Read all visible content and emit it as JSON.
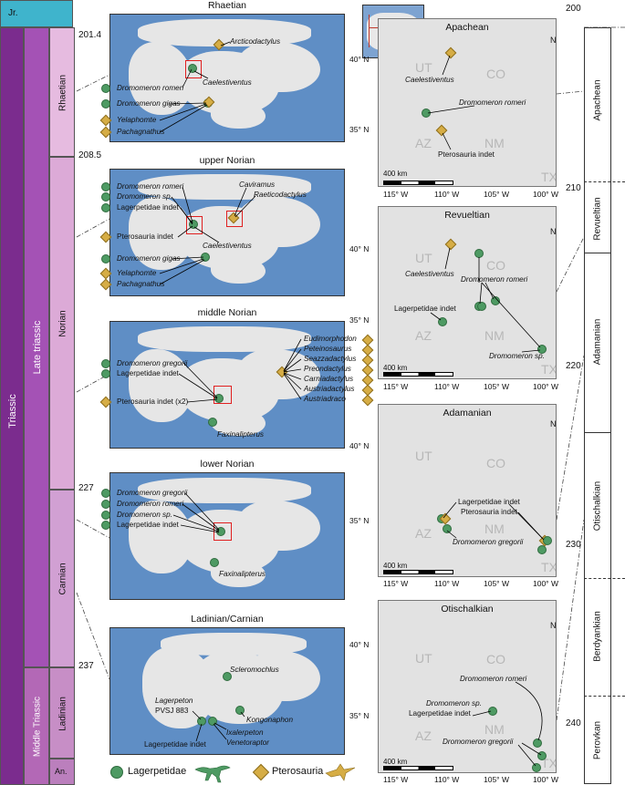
{
  "chronostrat": {
    "system": "Triassic",
    "jurassic": "Jr.",
    "series_late": "Late triassic",
    "series_middle": "Middle Triassic",
    "stage_rhaetian": "Rhaetian",
    "stage_norian": "Norian",
    "stage_carnian": "Carnian",
    "stage_ladinian": "Ladinian",
    "stage_anisian": "An.",
    "ages": [
      "201.4",
      "208.5",
      "227",
      "237"
    ]
  },
  "paleomaps": [
    {
      "title": "Rhaetian",
      "labels": [
        "Dromomeron romeri",
        "Dromomeron gigas",
        "Yelaphomte",
        "Pachagnathus",
        "Caelestiventus",
        "Arcticodactylus"
      ]
    },
    {
      "title": "upper Norian",
      "labels": [
        "Dromomeron romeri",
        "Dromomeron sp.",
        "Lagerpetidae indet",
        "Pterosauria indet",
        "Dromomeron gigas",
        "Yelaphomte",
        "Pachagnathus",
        "Caelestiventus",
        "Caviramus",
        "Raeticodactylus"
      ]
    },
    {
      "title": "middle Norian",
      "labels": [
        "Dromomeron gregorii",
        "Lagerpetidae indet",
        "Pterosauria indet (x2)",
        "Faxinalipterus",
        "Eudimorphodon",
        "Peteinosaurus",
        "Seazzadactylus",
        "Preondactylus",
        "Carniadactylus",
        "Austriadactylus",
        "Austriadraco"
      ]
    },
    {
      "title": "lower Norian",
      "labels": [
        "Dromomeron gregorii",
        "Dromomeron romeri",
        "Dromomeron sp.",
        "Lagerpetidae indet",
        "Faxinalipterus"
      ]
    },
    {
      "title": "Ladinian/Carnian",
      "labels": [
        "Scleromochlus",
        "Lagerpeton",
        "PVSJ 883",
        "Lagerpetidae indet",
        "Kongonaphon",
        "Ixalerpeton",
        "Venetoraptor"
      ]
    }
  ],
  "legend": {
    "lagerpetidae": "Lagerpetidae",
    "pterosauria": "Pterosauria"
  },
  "regional_maps": [
    {
      "title": "Apachean",
      "labels": [
        "Caelestiventus",
        "Dromomeron romeri",
        "Pterosauria indet"
      ]
    },
    {
      "title": "Revueltian",
      "labels": [
        "Caelestiventus",
        "Dromomeron romeri",
        "Lagerpetidae indet",
        "Dromomeron sp."
      ]
    },
    {
      "title": "Adamanian",
      "labels": [
        "Lagerpetidae indet",
        "Pterosauria indet",
        "Dromomeron gregorii"
      ]
    },
    {
      "title": "Otischalkian",
      "labels": [
        "Dromomeron romeri",
        "Dromomeron sp.",
        "Lagerpetidae indet",
        "Dromomeron gregorii"
      ]
    }
  ],
  "map_common": {
    "states": [
      "UT",
      "CO",
      "AZ",
      "NM",
      "TX"
    ],
    "lat": [
      "40° N",
      "35° N"
    ],
    "lon": [
      "115° W",
      "110° W",
      "105° W",
      "100° W"
    ],
    "north": "N",
    "scale": "400 km"
  },
  "lvf": {
    "ticks": [
      "200",
      "210",
      "220",
      "230",
      "240"
    ],
    "zones": [
      "Apachean",
      "Revueltian",
      "Adamanian",
      "Otischalkian",
      "Berdyankian",
      "Perovkan"
    ]
  },
  "colors": {
    "lagerpetid": "#4e9a63",
    "pterosaur": "#d6ad45",
    "ocean": "#5f8ec5",
    "triassic": "#7b2c8e"
  }
}
